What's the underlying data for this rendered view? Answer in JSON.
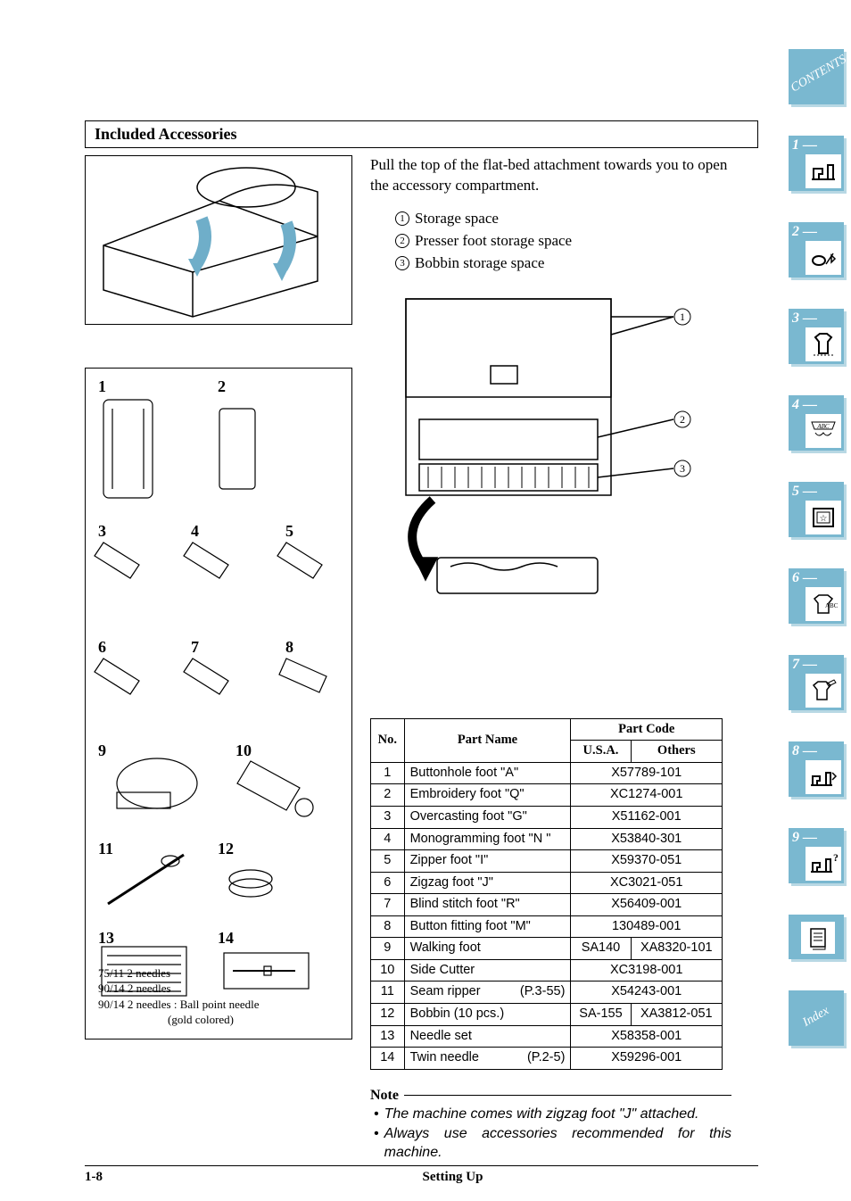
{
  "section_title": "Included Accessories",
  "intro": "Pull the top of the flat-bed attachment towards you to open the accessory compartment.",
  "compartment_labels": [
    {
      "n": "1",
      "text": "Storage space"
    },
    {
      "n": "2",
      "text": "Presser foot storage space"
    },
    {
      "n": "3",
      "text": "Bobbin storage space"
    }
  ],
  "accessory_numbers": [
    "1",
    "2",
    "3",
    "4",
    "5",
    "6",
    "7",
    "8",
    "9",
    "10",
    "11",
    "12",
    "13",
    "14"
  ],
  "needle_notes": [
    "75/11  2 needles",
    "90/14  2 needles",
    "90/14  2 needles : Ball point needle",
    "(gold colored)"
  ],
  "table": {
    "headers": {
      "no": "No.",
      "name": "Part Name",
      "code": "Part Code",
      "usa": "U.S.A.",
      "others": "Others"
    },
    "rows": [
      {
        "no": "1",
        "name": "Buttonhole foot \"A\"",
        "usa": "X57789-101",
        "others": "",
        "span": true
      },
      {
        "no": "2",
        "name": "Embroidery foot \"Q\"",
        "usa": "XC1274-001",
        "others": "",
        "span": true
      },
      {
        "no": "3",
        "name": "Overcasting foot \"G\"",
        "usa": "X51162-001",
        "others": "",
        "span": true
      },
      {
        "no": "4",
        "name": "Monogramming foot \"N \"",
        "usa": "X53840-301",
        "others": "",
        "span": true
      },
      {
        "no": "5",
        "name": "Zipper foot \"I\"",
        "usa": "X59370-051",
        "others": "",
        "span": true
      },
      {
        "no": "6",
        "name": "Zigzag foot \"J\"",
        "usa": "XC3021-051",
        "others": "",
        "span": true
      },
      {
        "no": "7",
        "name": "Blind stitch foot \"R\"",
        "usa": "X56409-001",
        "others": "",
        "span": true
      },
      {
        "no": "8",
        "name": "Button fitting foot \"M\"",
        "usa": "130489-001",
        "others": "",
        "span": true
      },
      {
        "no": "9",
        "name": "Walking foot",
        "usa": "SA140",
        "others": "XA8320-101",
        "span": false
      },
      {
        "no": "10",
        "name": "Side Cutter",
        "usa": "XC3198-001",
        "others": "",
        "span": true
      },
      {
        "no": "11",
        "name": "Seam ripper",
        "ref": "(P.3-55)",
        "usa": "X54243-001",
        "others": "",
        "span": true
      },
      {
        "no": "12",
        "name": "Bobbin (10 pcs.)",
        "usa": "SA-155",
        "others": "XA3812-051",
        "span": false
      },
      {
        "no": "13",
        "name": "Needle set",
        "usa": "X58358-001",
        "others": "",
        "span": true
      },
      {
        "no": "14",
        "name": "Twin needle",
        "ref": "(P.2-5)",
        "usa": "X59296-001",
        "others": "",
        "span": true
      }
    ]
  },
  "note": {
    "heading": "Note",
    "items": [
      "The machine comes with zigzag foot \"J\" attached.",
      "Always use accessories recommended for this machine."
    ]
  },
  "footer": {
    "page": "1-8",
    "title": "Setting Up"
  },
  "tabs": {
    "contents": "CONTENTS",
    "index": "Index",
    "chapters": [
      "1 —",
      "2 —",
      "3 —",
      "4 —",
      "5 —",
      "6 —",
      "7 —",
      "8 —",
      "9 —"
    ]
  },
  "colors": {
    "tab_bg": "#7ab8d0",
    "tab_shadow": "#b8d8e4",
    "arrow": "#6faec9"
  }
}
